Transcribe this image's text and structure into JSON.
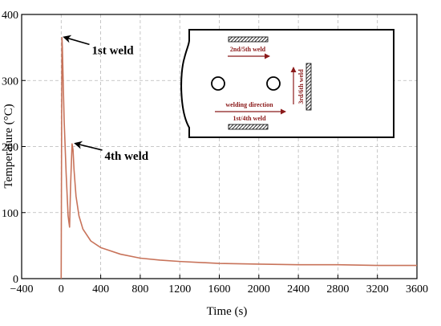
{
  "chart_data": {
    "type": "line",
    "title": "",
    "xlabel": "Time (s)",
    "ylabel": "Temperature (°C)",
    "xlim": [
      -400,
      3600
    ],
    "ylim": [
      0,
      400
    ],
    "grid": true,
    "x_ticks": [
      -400,
      0,
      400,
      800,
      1200,
      1600,
      2000,
      2400,
      2800,
      3200,
      3600
    ],
    "y_ticks": [
      0,
      100,
      200,
      300,
      400
    ],
    "x_tick_labels": [
      "−400",
      "0",
      "400",
      "800",
      "1200",
      "1600",
      "2000",
      "2400",
      "2800",
      "3200",
      "3600"
    ],
    "y_tick_labels": [
      "0",
      "100",
      "200",
      "300",
      "400"
    ],
    "colors": {
      "line": "#c8735a",
      "grid": "#b8b8b8",
      "annotation": "#8b1a1a"
    },
    "series": [
      {
        "name": "",
        "x": [
          0,
          5,
          8,
          12,
          20,
          30,
          50,
          70,
          85,
          95,
          110,
          120,
          130,
          150,
          180,
          220,
          300,
          400,
          600,
          800,
          1000,
          1200,
          1600,
          2000,
          2400,
          2800,
          3200,
          3600
        ],
        "y": [
          0,
          250,
          365,
          350,
          300,
          240,
          160,
          95,
          78,
          140,
          204,
          195,
          165,
          125,
          95,
          75,
          57,
          47,
          37,
          31,
          28,
          26,
          23,
          22,
          21,
          21,
          20,
          20
        ]
      }
    ],
    "annotations": [
      {
        "text": "1st weld",
        "x": 7,
        "y": 368,
        "text_x": 310,
        "text_y": 340
      },
      {
        "text": "4th weld",
        "x": 120,
        "y": 207,
        "text_x": 440,
        "text_y": 180
      }
    ],
    "inset": {
      "labels": {
        "top": "2nd/5th weld",
        "bottom": "1st/4th weld",
        "direction": "welding direction",
        "side": "3rd/6th weld"
      }
    }
  }
}
